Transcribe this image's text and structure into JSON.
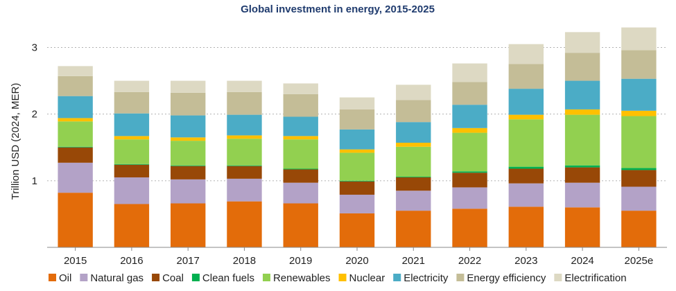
{
  "chart_data": {
    "type": "bar",
    "stacked": true,
    "title": "Global investment in energy, 2015-2025",
    "ylabel": "Trillion USD (2024, MER)",
    "xlabel": "",
    "ylim": [
      0,
      3.4
    ],
    "yticks": [
      1,
      2,
      3
    ],
    "grid": "horizontal-dotted",
    "legend_position": "bottom",
    "categories": [
      "2015",
      "2016",
      "2017",
      "2018",
      "2019",
      "2020",
      "2021",
      "2022",
      "2023",
      "2024",
      "2025e"
    ],
    "series": [
      {
        "name": "Oil",
        "color": "#e36c0a",
        "values": [
          0.82,
          0.65,
          0.66,
          0.69,
          0.66,
          0.51,
          0.55,
          0.58,
          0.61,
          0.6,
          0.55
        ]
      },
      {
        "name": "Natural gas",
        "color": "#b3a2c7",
        "values": [
          0.45,
          0.4,
          0.36,
          0.34,
          0.31,
          0.28,
          0.3,
          0.32,
          0.35,
          0.37,
          0.36
        ]
      },
      {
        "name": "Coal",
        "color": "#984807",
        "values": [
          0.23,
          0.19,
          0.2,
          0.19,
          0.2,
          0.2,
          0.2,
          0.22,
          0.22,
          0.23,
          0.25
        ]
      },
      {
        "name": "Clean fuels",
        "color": "#00b050",
        "values": [
          0.01,
          0.01,
          0.01,
          0.01,
          0.01,
          0.01,
          0.01,
          0.02,
          0.03,
          0.03,
          0.03
        ]
      },
      {
        "name": "Renewables",
        "color": "#92d050",
        "values": [
          0.38,
          0.37,
          0.37,
          0.4,
          0.44,
          0.42,
          0.45,
          0.58,
          0.71,
          0.76,
          0.78
        ]
      },
      {
        "name": "Nuclear",
        "color": "#ffc000",
        "values": [
          0.05,
          0.05,
          0.05,
          0.05,
          0.05,
          0.05,
          0.06,
          0.07,
          0.07,
          0.08,
          0.08
        ]
      },
      {
        "name": "Electricity",
        "color": "#4bacc6",
        "values": [
          0.33,
          0.34,
          0.33,
          0.31,
          0.29,
          0.3,
          0.31,
          0.35,
          0.39,
          0.43,
          0.48
        ]
      },
      {
        "name": "Energy efficiency",
        "color": "#c4bd97",
        "values": [
          0.3,
          0.32,
          0.34,
          0.34,
          0.34,
          0.3,
          0.33,
          0.34,
          0.37,
          0.42,
          0.43
        ]
      },
      {
        "name": "Electrification",
        "color": "#ddd9c3",
        "values": [
          0.15,
          0.17,
          0.18,
          0.17,
          0.16,
          0.18,
          0.23,
          0.28,
          0.3,
          0.31,
          0.34
        ]
      }
    ]
  }
}
